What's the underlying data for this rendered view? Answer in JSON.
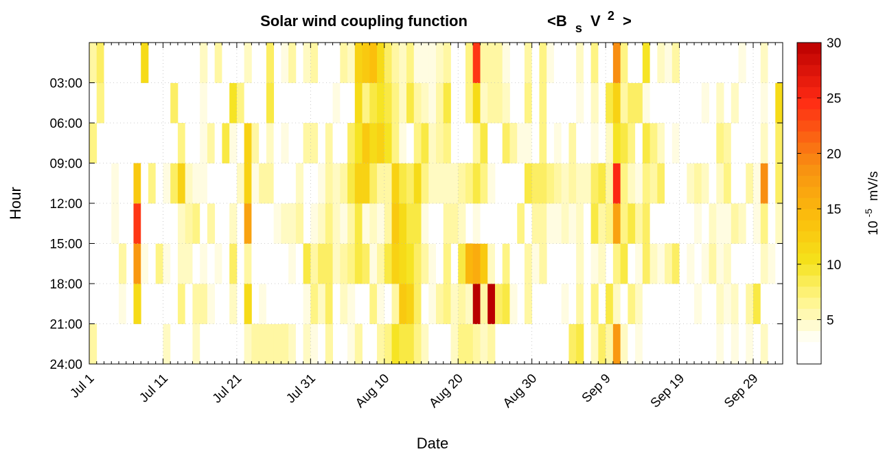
{
  "title": {
    "main": "Solar wind coupling function",
    "formula_open": "<B",
    "formula_sub": "s",
    "formula_v": "V",
    "formula_sup": "2",
    "formula_close": ">"
  },
  "colorbar": {
    "label_base": "10",
    "label_exp": "-5",
    "label_unit": "mV/s",
    "colors": {
      "low": "#ffffff",
      "mid1": "#fff58a",
      "mid2": "#f5e21b",
      "mid3": "#fbbf0c",
      "mid4": "#f88e12",
      "mid5": "#ff2a14",
      "high": "#ba0000"
    }
  },
  "chart_data": {
    "type": "heatmap",
    "title": "Solar wind coupling function <B_s V^2>",
    "xlabel": "Date",
    "ylabel": "Hour",
    "x_tick_labels": [
      "Jul 1",
      "Jul 11",
      "Jul 21",
      "Jul 31",
      "Aug 10",
      "Aug 20",
      "Aug 30",
      "Sep 9",
      "Sep 19",
      "Sep 29"
    ],
    "y_tick_labels": [
      "03:00",
      "06:00",
      "09:00",
      "12:00",
      "15:00",
      "18:00",
      "21:00",
      "24:00"
    ],
    "y_range": [
      0,
      24
    ],
    "date_start": "Jul 1",
    "days": 94,
    "bins_per_day": 8,
    "color_scale": {
      "min": 1,
      "max": 30,
      "ticks": [
        5,
        10,
        15,
        20,
        25,
        30
      ],
      "unit": "10^-5 mV/s"
    },
    "grid": true,
    "rows_bottom_to_top": [
      "6,1,2,2,1,1,3,1,1,1,5,2,2,2,5,2,3,3,1,1,2,5,6,6,6,6,6,5,3,5,4,2,6,1,3,4,6,1,1,6,7,10,9,9,7,5,3,3,3,5,7,7,6,5,6,1,1,1,1,1,3,2,3,2,1,8,9,1,5,8,6,18,5,3,4,2,3,3,3,1,1,1,1,2,1,4,2,4,1,4,3,5,3,1",
      "1,2,3,1,4,3,11,1,2,1,2,3,7,3,6,6,4,1,3,5,1,11,1,4,3,2,1,3,3,4,7,5,8,3,5,4,1,1,7,4,1,6,13,12,8,3,4,6,7,5,6,5,30,6,30,8,9,4,1,6,1,3,3,1,4,2,6,3,7,1,9,5,3,7,5,3,3,3,3,1,3,2,4,1,3,5,4,5,3,6,9,3,3,2",
      "2,1,1,3,6,1,18,4,3,7,4,3,5,5,2,4,3,4,3,8,1,6,2,3,2,2,1,4,2,9,6,8,8,5,6,7,9,8,4,6,9,12,11,10,8,6,4,2,7,1,9,15,16,13,5,2,7,2,1,6,4,6,1,2,1,2,5,1,4,5,1,7,9,3,4,8,5,4,6,8,3,4,1,4,6,4,5,2,3,2,1,5,4,3",
      "2,1,1,4,1,1,24,2,3,2,3,3,5,6,7,3,6,1,2,5,1,17,2,3,3,4,5,5,6,1,4,5,7,5,4,6,9,4,5,4,6,13,11,9,9,4,3,1,6,6,5,1,4,2,3,1,2,2,7,2,6,6,4,4,5,4,5,3,9,6,7,17,7,9,6,8,3,3,1,1,1,2,4,1,5,4,4,6,5,1,4,7,2,5",
      "3,2,1,4,2,2,13,3,7,2,4,8,12,5,4,4,2,1,2,1,5,12,4,6,6,2,3,1,5,1,2,4,6,5,6,9,12,12,8,6,6,12,9,8,11,7,5,5,5,5,6,7,9,7,4,1,1,2,1,9,8,8,7,6,5,6,5,5,8,9,6,25,7,5,4,7,6,8,3,1,2,5,6,5,3,5,7,2,1,6,4,19,3,8",
      "7,1,1,2,1,1,1,1,1,1,1,3,7,3,3,4,6,3,9,4,1,12,6,3,5,3,4,1,1,6,6,3,6,3,2,8,10,13,11,12,10,7,4,3,7,9,5,6,7,1,1,1,6,9,3,1,8,6,4,4,3,7,3,4,2,6,3,3,4,1,5,10,9,7,3,9,7,5,3,4,2,3,2,3,1,7,6,3,2,2,1,5,2,8",
      "3,7,1,1,1,1,1,1,1,1,1,8,1,2,2,4,2,3,2,10,7,3,2,3,9,1,1,1,1,1,1,1,3,4,2,1,11,7,9,10,9,7,5,9,6,5,4,6,9,1,1,7,11,5,6,6,5,1,3,7,3,7,2,1,1,1,4,1,5,1,9,12,6,8,8,4,3,1,2,3,2,3,2,4,1,5,1,5,1,2,3,4,2,11",
      "6,8,3,1,2,1,3,11,1,1,1,2,1,1,2,5,1,6,3,2,1,5,1,3,8,1,4,6,1,5,6,2,1,3,6,5,12,13,14,11,8,6,5,7,4,4,4,5,6,1,1,7,24,6,6,6,4,1,1,6,3,7,4,2,2,1,5,2,7,3,1,19,7,3,2,10,3,5,4,6,1,2,2,1,3,1,2,2,4,1,1,5,3,2"
    ]
  }
}
